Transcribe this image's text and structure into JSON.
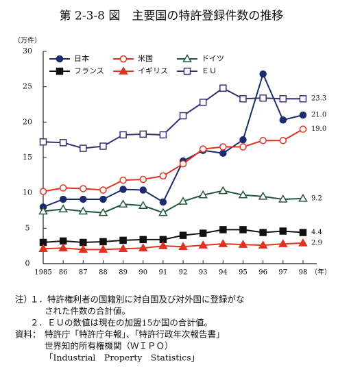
{
  "chart_data": {
    "type": "line",
    "title": "第 2-3-8 図　主要国の特許登録件数の推移",
    "y_unit": "（万件）",
    "x_unit": "（年）",
    "categories": [
      "1985",
      "86",
      "87",
      "88",
      "89",
      "90",
      "91",
      "92",
      "93",
      "94",
      "95",
      "96",
      "97",
      "98"
    ],
    "ylim": [
      0,
      30
    ],
    "yticks": [
      0,
      5,
      10,
      15,
      20,
      25,
      30
    ],
    "grid": false,
    "series": [
      {
        "name": "日本",
        "color": "#1c2a6e",
        "marker": "circle",
        "filled": true,
        "values": [
          8.0,
          9.1,
          9.1,
          9.1,
          10.5,
          10.4,
          8.7,
          14.5,
          16.0,
          15.6,
          17.5,
          26.8,
          20.3,
          21.0
        ],
        "value_labels": [
          null,
          null,
          null,
          null,
          null,
          null,
          null,
          null,
          null,
          null,
          null,
          null,
          null,
          "21.0"
        ]
      },
      {
        "name": "米国",
        "color": "#e0321f",
        "marker": "circle",
        "filled": false,
        "values": [
          10.2,
          10.7,
          10.6,
          10.4,
          11.8,
          11.9,
          12.4,
          14.1,
          16.2,
          16.5,
          16.5,
          17.4,
          17.4,
          19.0
        ],
        "value_labels": [
          null,
          null,
          null,
          null,
          null,
          null,
          null,
          null,
          null,
          null,
          null,
          null,
          null,
          "19.0"
        ]
      },
      {
        "name": "ドイツ",
        "color": "#24573a",
        "marker": "triangle",
        "filled": false,
        "values": [
          7.4,
          7.7,
          7.4,
          7.2,
          8.4,
          8.2,
          7.2,
          8.8,
          9.7,
          10.3,
          9.7,
          9.5,
          9.1,
          9.2
        ],
        "value_labels": [
          null,
          null,
          null,
          null,
          null,
          null,
          null,
          null,
          null,
          null,
          null,
          null,
          null,
          "9.2"
        ]
      },
      {
        "name": "フランス",
        "color": "#111111",
        "marker": "square",
        "filled": true,
        "values": [
          3.0,
          3.2,
          3.0,
          3.1,
          3.3,
          3.4,
          3.4,
          4.0,
          4.3,
          4.8,
          4.8,
          4.4,
          4.6,
          4.4
        ],
        "value_labels": [
          null,
          null,
          null,
          null,
          null,
          null,
          null,
          null,
          null,
          null,
          null,
          null,
          null,
          "4.4"
        ]
      },
      {
        "name": "イギリス",
        "color": "#e0321f",
        "marker": "triangle",
        "filled": true,
        "values": [
          2.1,
          2.2,
          2.0,
          2.0,
          2.1,
          2.2,
          2.5,
          2.4,
          2.6,
          2.8,
          2.7,
          2.6,
          2.8,
          2.9
        ],
        "value_labels": [
          null,
          null,
          null,
          null,
          null,
          null,
          null,
          null,
          null,
          null,
          null,
          null,
          null,
          "2.9"
        ]
      },
      {
        "name": "ＥＵ",
        "color": "#34306e",
        "marker": "square",
        "filled": false,
        "values": [
          17.2,
          17.1,
          16.3,
          16.6,
          18.2,
          18.3,
          18.2,
          20.9,
          22.8,
          24.8,
          23.3,
          23.4,
          23.3,
          23.3
        ],
        "value_labels": [
          null,
          null,
          null,
          null,
          null,
          null,
          null,
          null,
          null,
          null,
          null,
          null,
          null,
          "23.3"
        ]
      }
    ],
    "notes": [
      "注）",
      "１．特許権利者の国籍別に対自国及び対外国に登録がな",
      "された件数の合計値。",
      "２．ＥＵの数値は現在の加盟15か国の合計値。",
      "資料：",
      "特許庁「特許庁年報」、「特許行政年次報告書」",
      "世界知的所有権機関（ＷＩＰＯ）",
      "「Industrial　Property　Statistics」"
    ]
  }
}
